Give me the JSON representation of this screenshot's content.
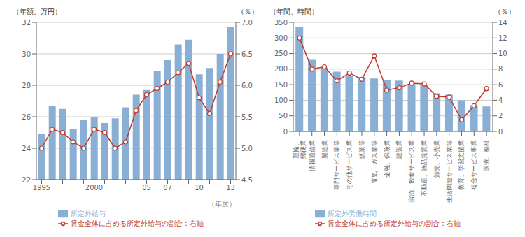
{
  "chart_data": [
    {
      "type": "bar",
      "ylabel": "（年額、万円）",
      "y2label": "（％）",
      "xlabel": "（年度）",
      "categories": [
        "1995",
        null,
        null,
        null,
        null,
        "2000",
        null,
        null,
        null,
        null,
        "05",
        null,
        "07",
        null,
        null,
        "10",
        null,
        null,
        "13"
      ],
      "ylim": [
        22,
        32
      ],
      "yticks": [
        22,
        24,
        26,
        28,
        30,
        32
      ],
      "y2lim": [
        4.5,
        7.0
      ],
      "y2ticks": [
        4.5,
        {
          "value": 5.0,
          "label": "5.0"
        },
        5.5,
        {
          "value": 6.0,
          "label": "6.0"
        },
        6.5,
        {
          "value": 7.0,
          "label": "7.0"
        }
      ],
      "grid": true,
      "legend": "bottom",
      "series": [
        {
          "name": "所定外給与",
          "type": "bar",
          "color": "#8aafd4",
          "values": [
            24.9,
            26.7,
            26.5,
            25.2,
            25.8,
            26.0,
            25.6,
            25.9,
            26.6,
            27.4,
            27.7,
            28.9,
            29.6,
            30.6,
            30.9,
            28.7,
            29.1,
            30.0,
            31.7
          ]
        },
        {
          "name": "賃金全体に占める所定外給与の割合：右軸",
          "type": "line",
          "color": "#c0392b",
          "axis": "y2",
          "marker": "o",
          "values": [
            5.0,
            5.3,
            5.25,
            5.1,
            5.0,
            5.3,
            5.25,
            5.0,
            5.1,
            5.6,
            5.85,
            5.95,
            6.05,
            6.2,
            6.35,
            5.8,
            5.55,
            6.05,
            6.5
          ]
        }
      ]
    },
    {
      "type": "bar",
      "ylabel": "（年間、時間）",
      "y2label": "（％）",
      "categories": [
        "運輸、\n郵便業",
        "情報通信業",
        "製造業",
        "専門サービス業等",
        "その他サービス業",
        "鉱業等",
        "電気・ガス業等",
        "金融、保険業",
        "建設業",
        "宿泊、飲食サービス業",
        "不動産、物品賃貸業",
        "卸売、小売業",
        "生活関連サービス業等",
        "教育、学習支援業",
        "複合サービス事業",
        "医療、福祉"
      ],
      "ylim": [
        0,
        350
      ],
      "yticks": [
        0,
        50,
        100,
        150,
        200,
        250,
        300,
        350
      ],
      "y2lim": [
        0,
        14
      ],
      "y2ticks": [
        0,
        2,
        4,
        6,
        8,
        10,
        12,
        14
      ],
      "grid": true,
      "legend": "bottom",
      "series": [
        {
          "name": "所定外労働時間",
          "type": "bar",
          "color": "#8aafd4",
          "values": [
            335,
            230,
            205,
            192,
            178,
            175,
            170,
            165,
            163,
            152,
            150,
            122,
            118,
            100,
            84,
            80
          ]
        },
        {
          "name": "賃金全体に占める所定外給与の割合：右軸",
          "type": "line",
          "color": "#c0392b",
          "axis": "y2",
          "marker": "o",
          "values": [
            12.0,
            8.0,
            8.3,
            6.5,
            7.5,
            6.7,
            9.7,
            5.3,
            5.6,
            6.2,
            6.1,
            4.5,
            4.4,
            1.5,
            3.3,
            5.5
          ]
        }
      ]
    }
  ]
}
